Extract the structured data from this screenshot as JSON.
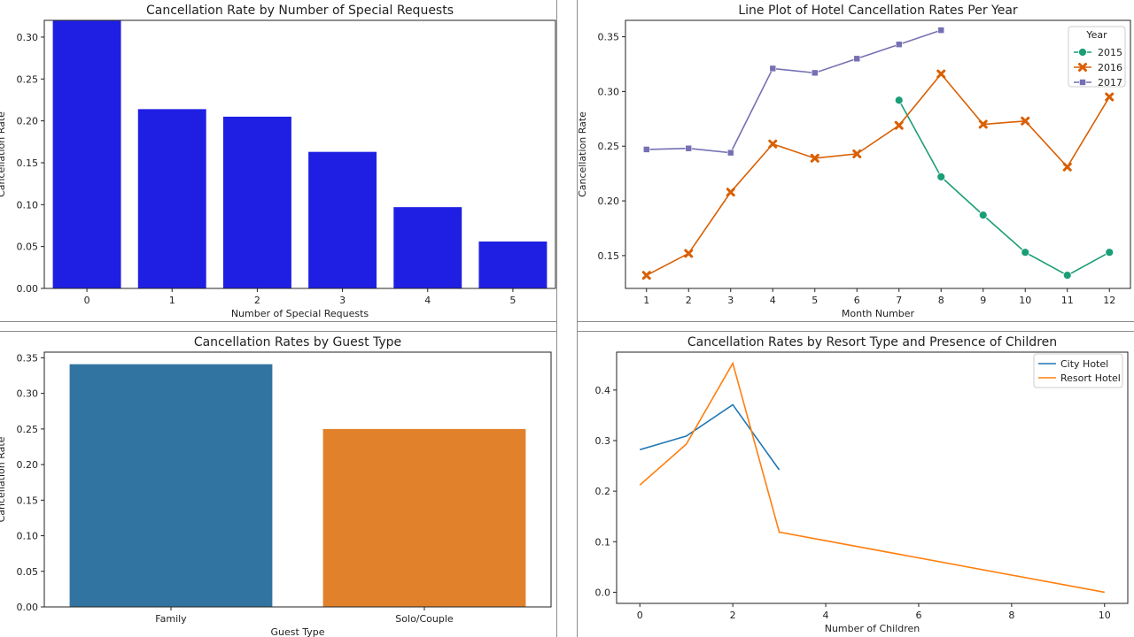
{
  "chart_data": [
    {
      "type": "bar",
      "title": "Cancellation Rate by Number of Special Requests",
      "xlabel": "Number of Special Requests",
      "ylabel": "Cancellation Rate",
      "categories": [
        "0",
        "1",
        "2",
        "3",
        "4",
        "5"
      ],
      "values": [
        0.32,
        0.214,
        0.205,
        0.163,
        0.097,
        0.056
      ],
      "ylim": [
        0,
        0.32
      ],
      "yticks": [
        "0.00",
        "0.05",
        "0.10",
        "0.15",
        "0.20",
        "0.25",
        "0.30"
      ],
      "bar_color": "#1f1fe4",
      "grid": false
    },
    {
      "type": "line",
      "title": "Line Plot of Hotel Cancellation Rates Per Year",
      "xlabel": "Month Number",
      "ylabel": "Cancellation Rate",
      "xticks": [
        "1",
        "2",
        "3",
        "4",
        "5",
        "6",
        "7",
        "8",
        "9",
        "10",
        "11",
        "12"
      ],
      "yticks": [
        "0.15",
        "0.20",
        "0.25",
        "0.30",
        "0.35"
      ],
      "xlim": [
        0.5,
        12.5
      ],
      "ylim": [
        0.12,
        0.365
      ],
      "legend_title": "Year",
      "legend_position": "top-right",
      "grid": false,
      "series": [
        {
          "name": "2015",
          "color": "#1b9e77",
          "marker": "circle",
          "x": [
            7,
            8,
            9,
            10,
            11,
            12
          ],
          "y": [
            0.292,
            0.222,
            0.187,
            0.153,
            0.132,
            0.153
          ]
        },
        {
          "name": "2016",
          "color": "#d95f02",
          "marker": "x",
          "x": [
            1,
            2,
            3,
            4,
            5,
            6,
            7,
            8,
            9,
            10,
            11,
            12
          ],
          "y": [
            0.132,
            0.152,
            0.208,
            0.252,
            0.239,
            0.243,
            0.269,
            0.316,
            0.27,
            0.273,
            0.231,
            0.295
          ]
        },
        {
          "name": "2017",
          "color": "#7570b3",
          "marker": "square",
          "x": [
            1,
            2,
            3,
            4,
            5,
            6,
            7,
            8
          ],
          "y": [
            0.247,
            0.248,
            0.244,
            0.321,
            0.317,
            0.33,
            0.343,
            0.356
          ]
        }
      ]
    },
    {
      "type": "bar",
      "title": "Cancellation Rates by Guest Type",
      "xlabel": "Guest Type",
      "ylabel": "Cancellation Rate",
      "categories": [
        "Family",
        "Solo/Couple"
      ],
      "values": [
        0.341,
        0.25
      ],
      "colors": [
        "#3274a1",
        "#e1812c"
      ],
      "ylim": [
        0,
        0.358
      ],
      "yticks": [
        "0.00",
        "0.05",
        "0.10",
        "0.15",
        "0.20",
        "0.25",
        "0.30",
        "0.35"
      ],
      "grid": false
    },
    {
      "type": "line",
      "title": "Cancellation Rates by Resort Type and Presence of Children",
      "xlabel": "Number of Children",
      "ylabel": "Cancellation Rate",
      "xticks": [
        "0",
        "2",
        "4",
        "6",
        "8",
        "10"
      ],
      "yticks": [
        "0.0",
        "0.1",
        "0.2",
        "0.3",
        "0.4"
      ],
      "xlim": [
        -0.5,
        10.5
      ],
      "ylim": [
        -0.022,
        0.475
      ],
      "legend_position": "top-right",
      "grid": false,
      "series": [
        {
          "name": "City Hotel",
          "color": "#1f77b4",
          "x": [
            0,
            1,
            2,
            3
          ],
          "y": [
            0.282,
            0.309,
            0.371,
            0.242
          ]
        },
        {
          "name": "Resort Hotel",
          "color": "#ff7f0e",
          "x": [
            0,
            1,
            2,
            3,
            10
          ],
          "y": [
            0.212,
            0.293,
            0.453,
            0.119,
            0.0
          ]
        }
      ]
    }
  ]
}
